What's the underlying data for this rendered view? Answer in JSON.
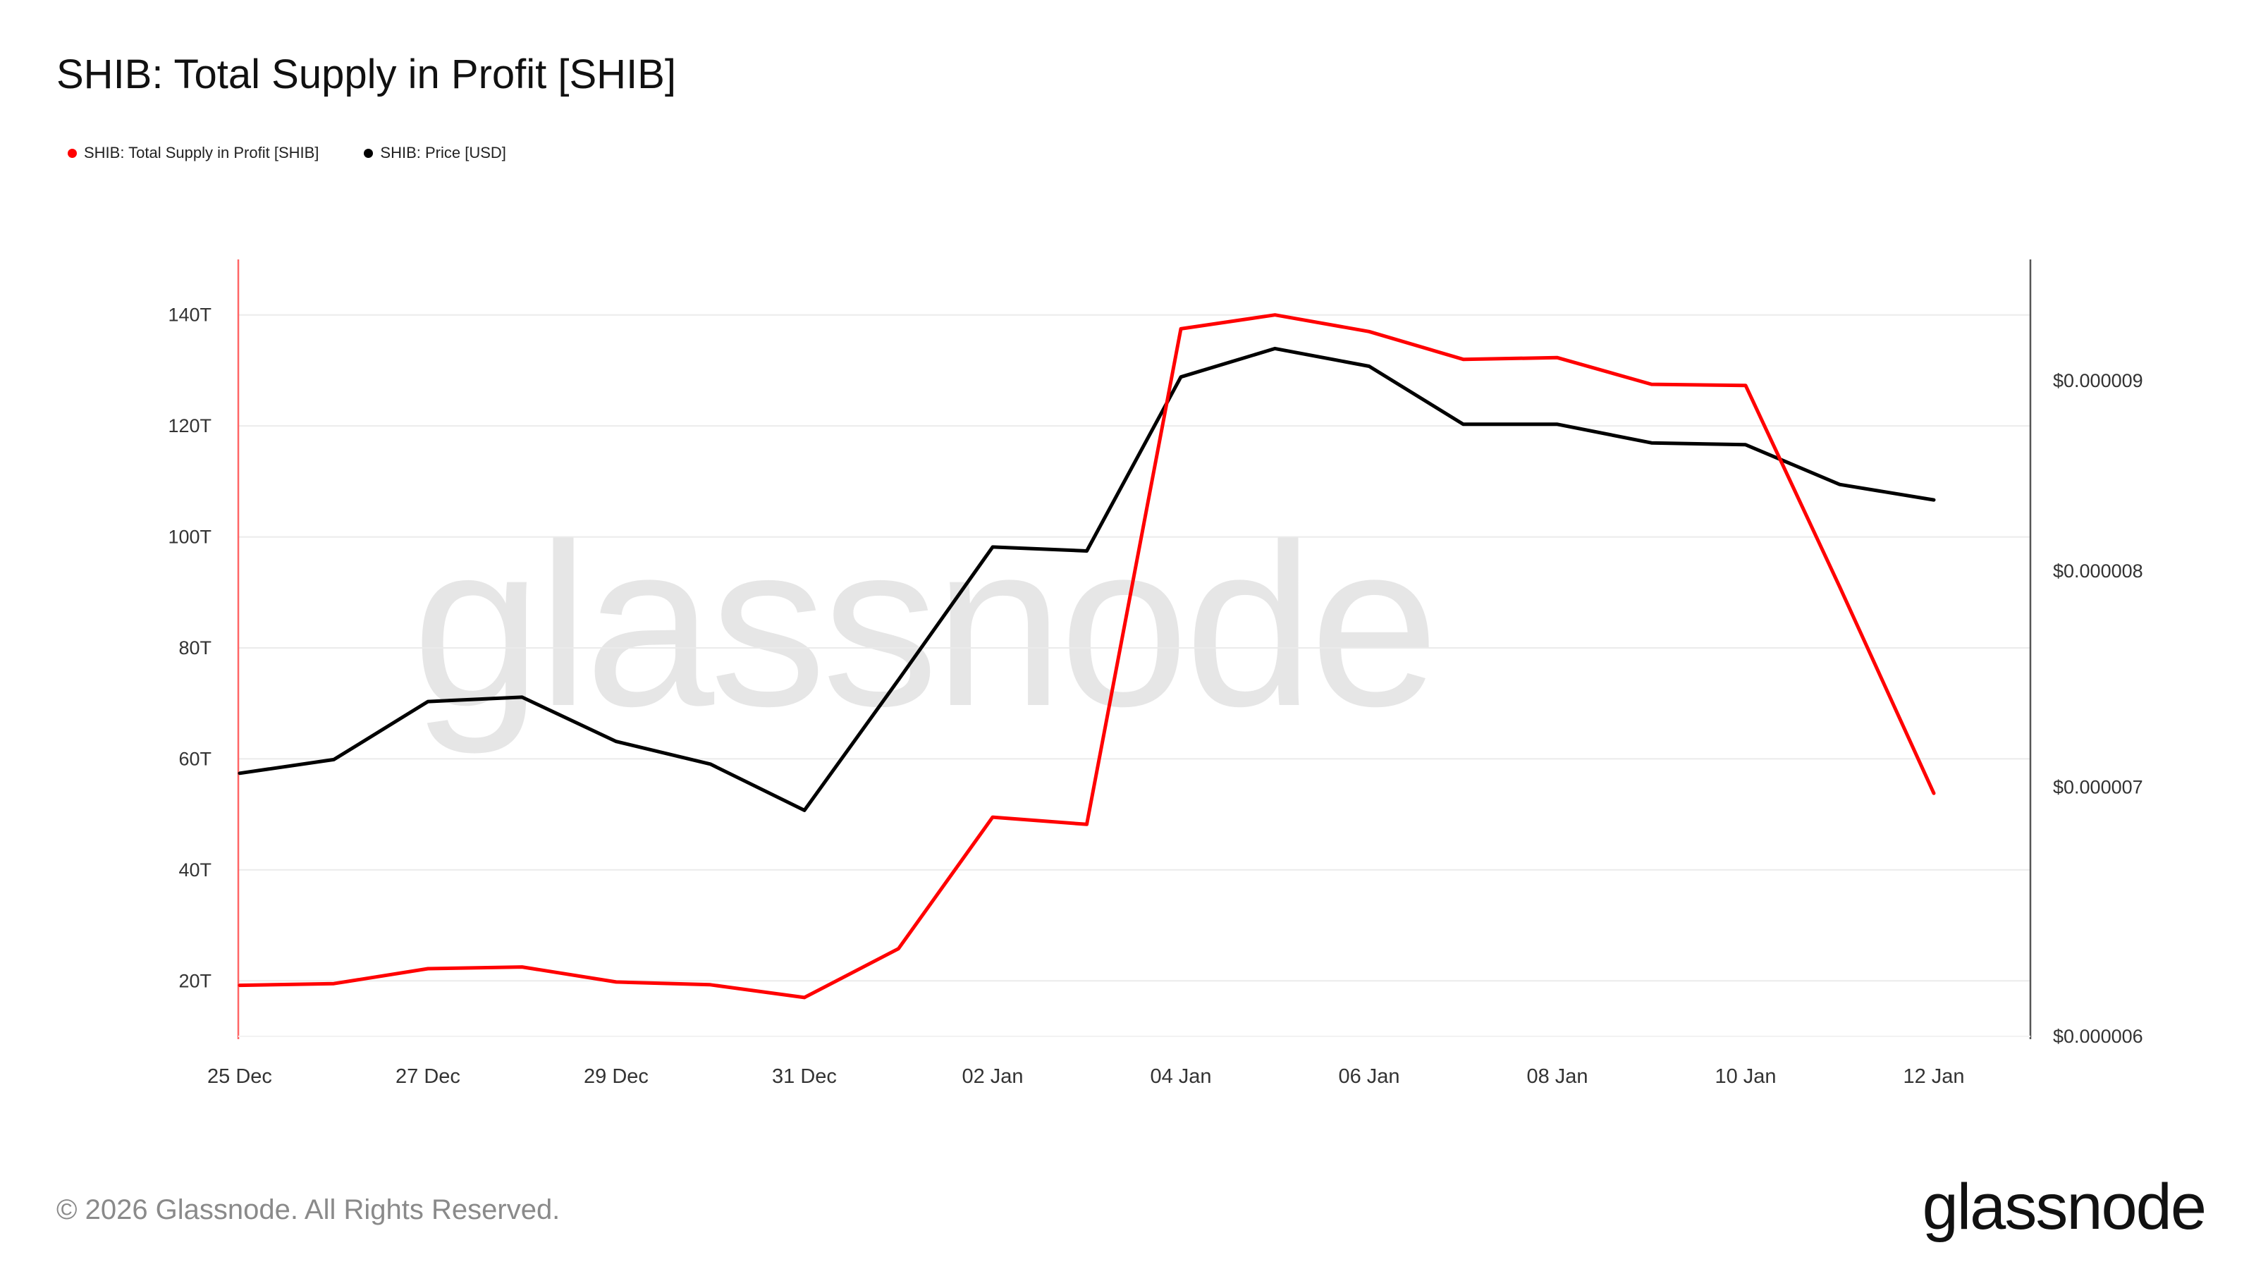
{
  "header": {
    "title": "SHIB: Total Supply in Profit [SHIB]"
  },
  "legend": [
    {
      "label": "SHIB: Total Supply in Profit [SHIB]",
      "color": "#ff0000"
    },
    {
      "label": "SHIB: Price [USD]",
      "color": "#000000"
    }
  ],
  "watermark": "glassnode",
  "footer": {
    "copyright": "© 2026 Glassnode. All Rights Reserved.",
    "brand": "glassnode"
  },
  "chart_data": {
    "type": "line",
    "x": [
      "25 Dec",
      "26 Dec",
      "27 Dec",
      "28 Dec",
      "29 Dec",
      "30 Dec",
      "31 Dec",
      "01 Jan",
      "02 Jan",
      "03 Jan",
      "04 Jan",
      "05 Jan",
      "06 Jan",
      "07 Jan",
      "08 Jan",
      "09 Jan",
      "10 Jan",
      "11 Jan",
      "12 Jan"
    ],
    "x_tick_labels": [
      "25 Dec",
      "27 Dec",
      "29 Dec",
      "31 Dec",
      "02 Jan",
      "04 Jan",
      "06 Jan",
      "08 Jan",
      "10 Jan",
      "12 Jan"
    ],
    "series": [
      {
        "name": "SHIB: Total Supply in Profit [SHIB]",
        "axis": "left",
        "color": "#ff0000",
        "values": [
          19.2,
          19.5,
          22.2,
          22.5,
          19.8,
          19.3,
          17.0,
          25.8,
          49.5,
          48.2,
          137.5,
          140.0,
          137.0,
          132.0,
          132.3,
          127.5,
          127.3,
          91.0,
          53.8
        ]
      },
      {
        "name": "SHIB: Price [USD]",
        "axis": "right",
        "color": "#000000",
        "values": [
          7.06e-06,
          7.12e-06,
          7.38e-06,
          7.4e-06,
          7.2e-06,
          7.1e-06,
          6.9e-06,
          7.48e-06,
          8.12e-06,
          8.1e-06,
          9.02e-06,
          9.18e-06,
          9.08e-06,
          8.76e-06,
          8.76e-06,
          8.66e-06,
          8.65e-06,
          8.44e-06,
          8.36e-06
        ]
      }
    ],
    "y_left": {
      "ticks": [
        20,
        40,
        60,
        80,
        100,
        120,
        140
      ],
      "tick_labels": [
        "20T",
        "40T",
        "60T",
        "80T",
        "100T",
        "120T",
        "140T"
      ],
      "range": [
        10,
        150
      ],
      "unit": "T"
    },
    "y_right": {
      "scale": "log",
      "ticks": [
        6e-06,
        7e-06,
        8e-06,
        9e-06
      ],
      "tick_labels": [
        "$0.000006",
        "$0.000007",
        "$0.000008",
        "$0.000009"
      ],
      "range": [
        6e-06,
        9.7e-06
      ]
    },
    "grid": true,
    "legend_position": "top-left"
  }
}
